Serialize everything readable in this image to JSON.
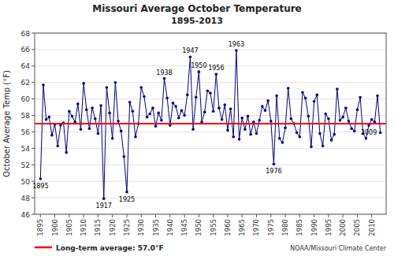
{
  "chart_data": {
    "type": "line",
    "title": "Missouri Average October Temperature",
    "subtitle": "1895-2013",
    "y_label": "October Average Temp (°F)",
    "source": "NOAA/Missouri Climate Center",
    "color": "#00008B",
    "marker": "circle",
    "grid": true,
    "xlim": [
      1893,
      2015
    ],
    "xticks": [
      1895,
      1900,
      1905,
      1910,
      1915,
      1920,
      1925,
      1930,
      1935,
      1940,
      1945,
      1950,
      1955,
      1960,
      1965,
      1970,
      1975,
      1980,
      1985,
      1990,
      1995,
      2000,
      2005,
      2010
    ],
    "ylim": [
      46,
      68
    ],
    "yticks": [
      46,
      48,
      50,
      52,
      54,
      56,
      58,
      60,
      62,
      64,
      66,
      68
    ],
    "reference_line": {
      "value": 57.0,
      "label": "Long-term average: 57.0°F",
      "color": "#FF0000"
    },
    "annotations": [
      {
        "x": 1895,
        "label": "1895",
        "position": "below"
      },
      {
        "x": 1917,
        "label": "1917",
        "position": "below"
      },
      {
        "x": 1925,
        "label": "1925",
        "position": "below"
      },
      {
        "x": 1938,
        "label": "1938",
        "position": "above"
      },
      {
        "x": 1947,
        "label": "1947",
        "position": "above"
      },
      {
        "x": 1950,
        "label": "1950",
        "position": "above"
      },
      {
        "x": 1956,
        "label": "1956",
        "position": "above"
      },
      {
        "x": 1963,
        "label": "1963",
        "position": "above"
      },
      {
        "x": 1976,
        "label": "1976",
        "position": "below"
      },
      {
        "x": 2009,
        "label": "2009",
        "position": "below"
      }
    ],
    "x": [
      1895,
      1896,
      1897,
      1898,
      1899,
      1900,
      1901,
      1902,
      1903,
      1904,
      1905,
      1906,
      1907,
      1908,
      1909,
      1910,
      1911,
      1912,
      1913,
      1914,
      1915,
      1916,
      1917,
      1918,
      1919,
      1920,
      1921,
      1922,
      1923,
      1924,
      1925,
      1926,
      1927,
      1928,
      1929,
      1930,
      1931,
      1932,
      1933,
      1934,
      1935,
      1936,
      1937,
      1938,
      1939,
      1940,
      1941,
      1942,
      1943,
      1944,
      1945,
      1946,
      1947,
      1948,
      1949,
      1950,
      1951,
      1952,
      1953,
      1954,
      1955,
      1956,
      1957,
      1958,
      1959,
      1960,
      1961,
      1962,
      1963,
      1964,
      1965,
      1966,
      1967,
      1968,
      1969,
      1970,
      1971,
      1972,
      1973,
      1974,
      1975,
      1976,
      1977,
      1978,
      1979,
      1980,
      1981,
      1982,
      1983,
      1984,
      1985,
      1986,
      1987,
      1988,
      1989,
      1990,
      1991,
      1992,
      1993,
      1994,
      1995,
      1996,
      1997,
      1998,
      1999,
      2000,
      2001,
      2002,
      2003,
      2004,
      2005,
      2006,
      2007,
      2008,
      2009,
      2010,
      2011,
      2012,
      2013
    ],
    "values": [
      50.3,
      61.7,
      57.5,
      57.8,
      55.6,
      56.9,
      54.3,
      56.8,
      57.1,
      53.5,
      58.5,
      57.9,
      57.2,
      59.4,
      56.3,
      61.9,
      58.7,
      56.4,
      58.9,
      57.6,
      55.8,
      59.2,
      47.9,
      61.4,
      58.3,
      55.2,
      62.0,
      57.3,
      56.1,
      53.0,
      48.7,
      59.6,
      58.5,
      55.4,
      57.0,
      61.4,
      60.3,
      57.8,
      58.2,
      58.9,
      56.7,
      58.3,
      57.4,
      62.5,
      60.1,
      56.8,
      59.5,
      59.1,
      57.7,
      58.6,
      58.0,
      60.5,
      65.1,
      56.3,
      60.2,
      63.3,
      57.2,
      58.4,
      61.0,
      60.7,
      58.5,
      63.0,
      58.9,
      57.5,
      59.3,
      56.2,
      58.8,
      55.4,
      65.9,
      55.1,
      57.7,
      56.3,
      57.9,
      55.7,
      57.2,
      55.8,
      57.4,
      59.1,
      58.6,
      59.8,
      57.3,
      52.1,
      60.4,
      55.2,
      54.7,
      56.5,
      61.3,
      57.6,
      57.0,
      55.9,
      55.4,
      60.8,
      60.1,
      57.9,
      54.2,
      59.7,
      60.5,
      55.8,
      54.3,
      58.2,
      57.6,
      55.0,
      55.7,
      61.2,
      57.4,
      57.8,
      58.9,
      57.3,
      56.4,
      56.1,
      58.7,
      60.2,
      55.8,
      55.2,
      56.8,
      57.5,
      57.2,
      60.4,
      55.9
    ]
  }
}
